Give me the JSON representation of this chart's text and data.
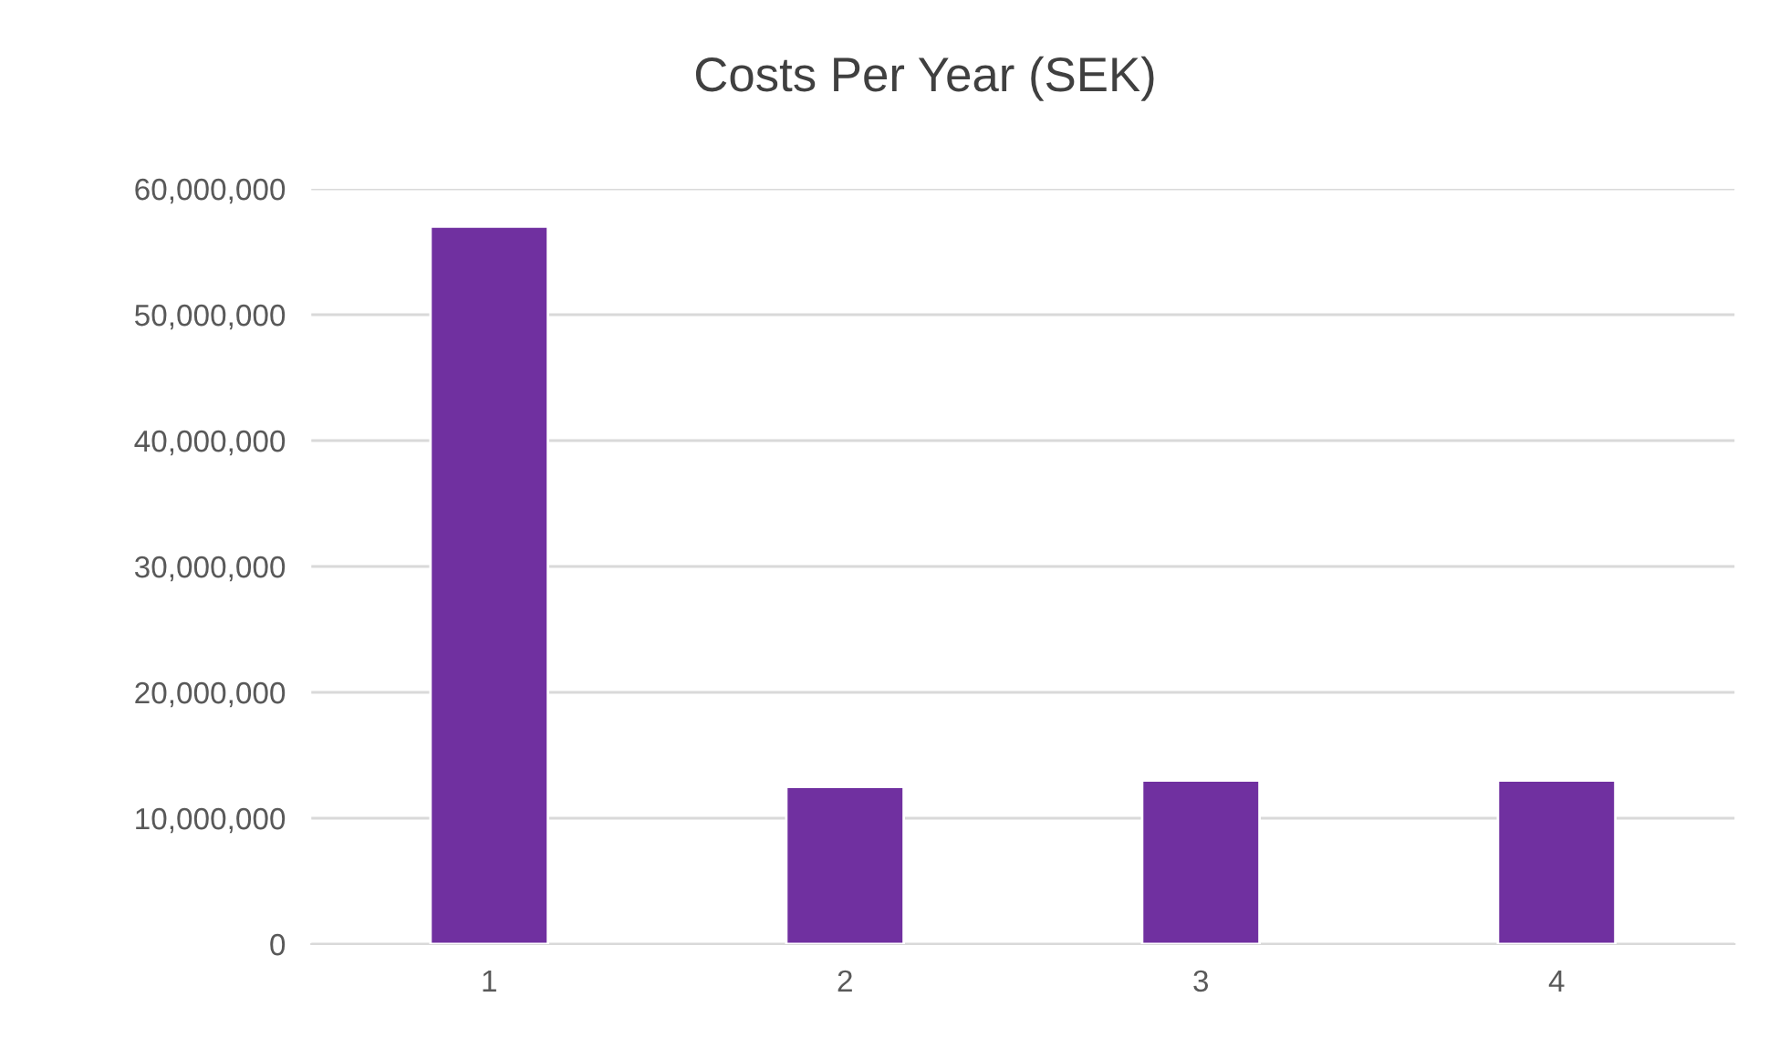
{
  "chart_data": {
    "type": "bar",
    "title": "Costs Per Year (SEK)",
    "categories": [
      "1",
      "2",
      "3",
      "4"
    ],
    "values": [
      57000000,
      12500000,
      13000000,
      13000000
    ],
    "color": "#7030a0",
    "ylim": [
      0,
      60000000
    ],
    "yticks": [
      {
        "value": 0,
        "label": "0"
      },
      {
        "value": 10000000,
        "label": "10,000,000"
      },
      {
        "value": 20000000,
        "label": "20,000,000"
      },
      {
        "value": 30000000,
        "label": "30,000,000"
      },
      {
        "value": 40000000,
        "label": "40,000,000"
      },
      {
        "value": 50000000,
        "label": "50,000,000"
      },
      {
        "value": 60000000,
        "label": "60,000,000"
      }
    ],
    "grid": "y"
  }
}
